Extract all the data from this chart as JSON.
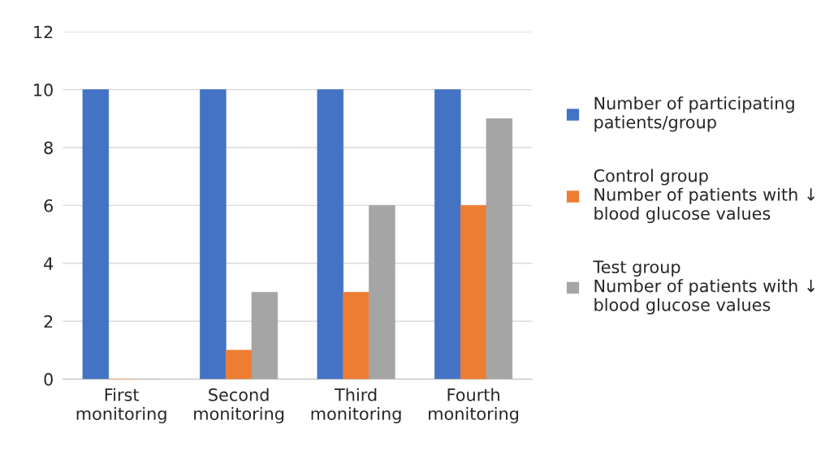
{
  "chart_data": {
    "type": "bar",
    "categories": [
      "First\nmonitoring",
      "Second\nmonitoring",
      "Third\nmonitoring",
      "Fourth\nmonitoring"
    ],
    "series": [
      {
        "name": "Number of participating\npatients/group",
        "color": "#4472c4",
        "values": [
          10,
          10,
          10,
          10
        ]
      },
      {
        "name": "Control group\nNumber of patients with ↓\nblood glucose values",
        "color": "#ed7d31",
        "values": [
          0,
          1,
          3,
          6
        ]
      },
      {
        "name": "Test group\nNumber of patients with ↓\nblood glucose values",
        "color": "#a5a5a5",
        "values": [
          0,
          3,
          6,
          9
        ]
      }
    ],
    "ylim": [
      0,
      12
    ],
    "yticks": [
      0,
      2,
      4,
      6,
      8,
      10,
      12
    ],
    "grid": "y",
    "legend": "right"
  }
}
